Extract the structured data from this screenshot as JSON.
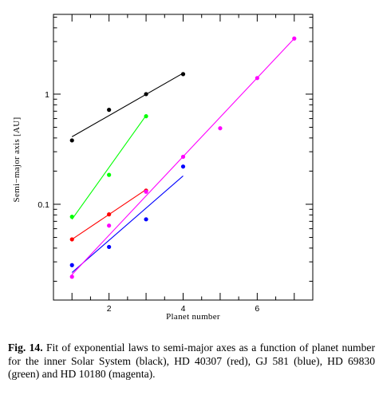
{
  "chart_data": {
    "type": "scatter",
    "xlabel": "Planet number",
    "ylabel": "Semi−major axis [AU]",
    "x_ticks": [
      2,
      4,
      6
    ],
    "y_ticks": [
      0.1,
      1
    ],
    "y_tick_labels": [
      "0.1",
      "1"
    ],
    "xlim": [
      0.5,
      7.5
    ],
    "ylim": [
      0.0135,
      5.3
    ],
    "y_scale": "log",
    "grid": false,
    "series": [
      {
        "color": "#000000",
        "points": [
          [
            1,
            0.38
          ],
          [
            2,
            0.72
          ],
          [
            3,
            1.0
          ],
          [
            4,
            1.52
          ]
        ],
        "fit": [
          [
            1,
            0.41
          ],
          [
            4,
            1.55
          ]
        ]
      },
      {
        "color": "#ff0000",
        "points": [
          [
            1,
            0.048
          ],
          [
            2,
            0.081
          ],
          [
            3,
            0.133
          ]
        ],
        "fit": [
          [
            1,
            0.048
          ],
          [
            3,
            0.136
          ]
        ]
      },
      {
        "color": "#0000ff",
        "points": [
          [
            1,
            0.028
          ],
          [
            2,
            0.041
          ],
          [
            3,
            0.073
          ],
          [
            4,
            0.22
          ]
        ],
        "fit": [
          [
            1,
            0.024
          ],
          [
            4,
            0.181
          ]
        ]
      },
      {
        "color": "#00ff00",
        "points": [
          [
            1,
            0.077
          ],
          [
            2,
            0.185
          ],
          [
            3,
            0.63
          ]
        ],
        "fit": [
          [
            1,
            0.073
          ],
          [
            3,
            0.64
          ]
        ]
      },
      {
        "color": "#ff00ff",
        "points": [
          [
            1,
            0.022
          ],
          [
            2,
            0.064
          ],
          [
            3,
            0.13
          ],
          [
            4,
            0.27
          ],
          [
            5,
            0.49
          ],
          [
            6,
            1.4
          ],
          [
            7,
            3.2
          ]
        ],
        "fit": [
          [
            1,
            0.023
          ],
          [
            7,
            3.2
          ]
        ]
      }
    ]
  },
  "caption": {
    "label": "Fig. 14.",
    "text": "Fit of exponential laws to semi-major axes as a function of planet number for the inner Solar System (black), HD 40307 (red), GJ 581 (blue), HD 69830 (green) and HD 10180 (magenta)."
  }
}
